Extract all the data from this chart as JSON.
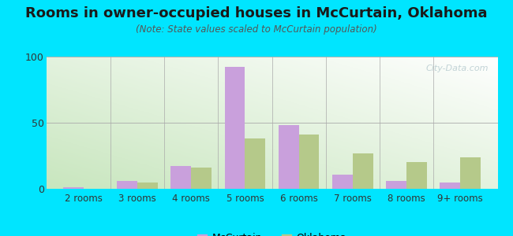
{
  "categories": [
    "2 rooms",
    "3 rooms",
    "4 rooms",
    "5 rooms",
    "6 rooms",
    "7 rooms",
    "8 rooms",
    "9+ rooms"
  ],
  "mccurtain": [
    1,
    6,
    17,
    92,
    48,
    11,
    6,
    5
  ],
  "oklahoma": [
    0,
    5,
    16,
    38,
    41,
    27,
    20,
    24
  ],
  "mccurtain_color": "#c9a0dc",
  "oklahoma_color": "#b5c98a",
  "title": "Rooms in owner-occupied houses in McCurtain, Oklahoma",
  "subtitle": "(Note: State values scaled to McCurtain population)",
  "ylim": [
    0,
    100
  ],
  "yticks": [
    0,
    50,
    100
  ],
  "outer_background": "#00e5ff",
  "plot_bg_top_right": "#ffffff",
  "plot_bg_bottom_left": "#c8e6c0",
  "title_fontsize": 13,
  "subtitle_fontsize": 8.5,
  "bar_width": 0.38,
  "legend_mccurtain": "McCurtain",
  "legend_oklahoma": "Oklahoma",
  "watermark": "City-Data.com"
}
